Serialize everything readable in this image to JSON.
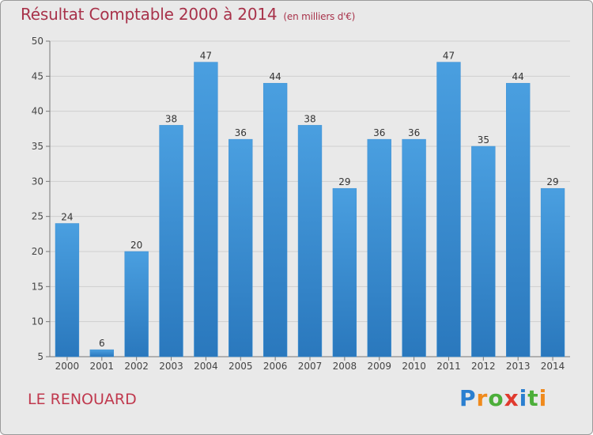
{
  "chart_data": {
    "type": "bar",
    "title": "Résultat Comptable 2000 à 2014",
    "subtitle": "(en milliers d'€)",
    "categories": [
      "2000",
      "2001",
      "2002",
      "2003",
      "2004",
      "2005",
      "2006",
      "2007",
      "2008",
      "2009",
      "2010",
      "2011",
      "2012",
      "2013",
      "2014"
    ],
    "values": [
      24,
      6,
      20,
      38,
      47,
      36,
      44,
      38,
      29,
      36,
      36,
      47,
      35,
      44,
      29
    ],
    "xlabel": "",
    "ylabel": "",
    "ylim": [
      5,
      50
    ],
    "yticks": [
      5,
      10,
      15,
      20,
      25,
      30,
      35,
      40,
      45,
      50
    ],
    "grid": true,
    "bar_color": "#4a9fe0",
    "bar_color_dark": "#2a78bd"
  },
  "location": "LE RENOUARD",
  "logo": {
    "letters": [
      "P",
      "r",
      "o",
      "x",
      "i",
      "t",
      "i"
    ],
    "colors": [
      "#2a7fd0",
      "#f08a1c",
      "#4cae3a",
      "#e03a2e",
      "#2a7fd0",
      "#4cae3a",
      "#f08a1c"
    ]
  }
}
